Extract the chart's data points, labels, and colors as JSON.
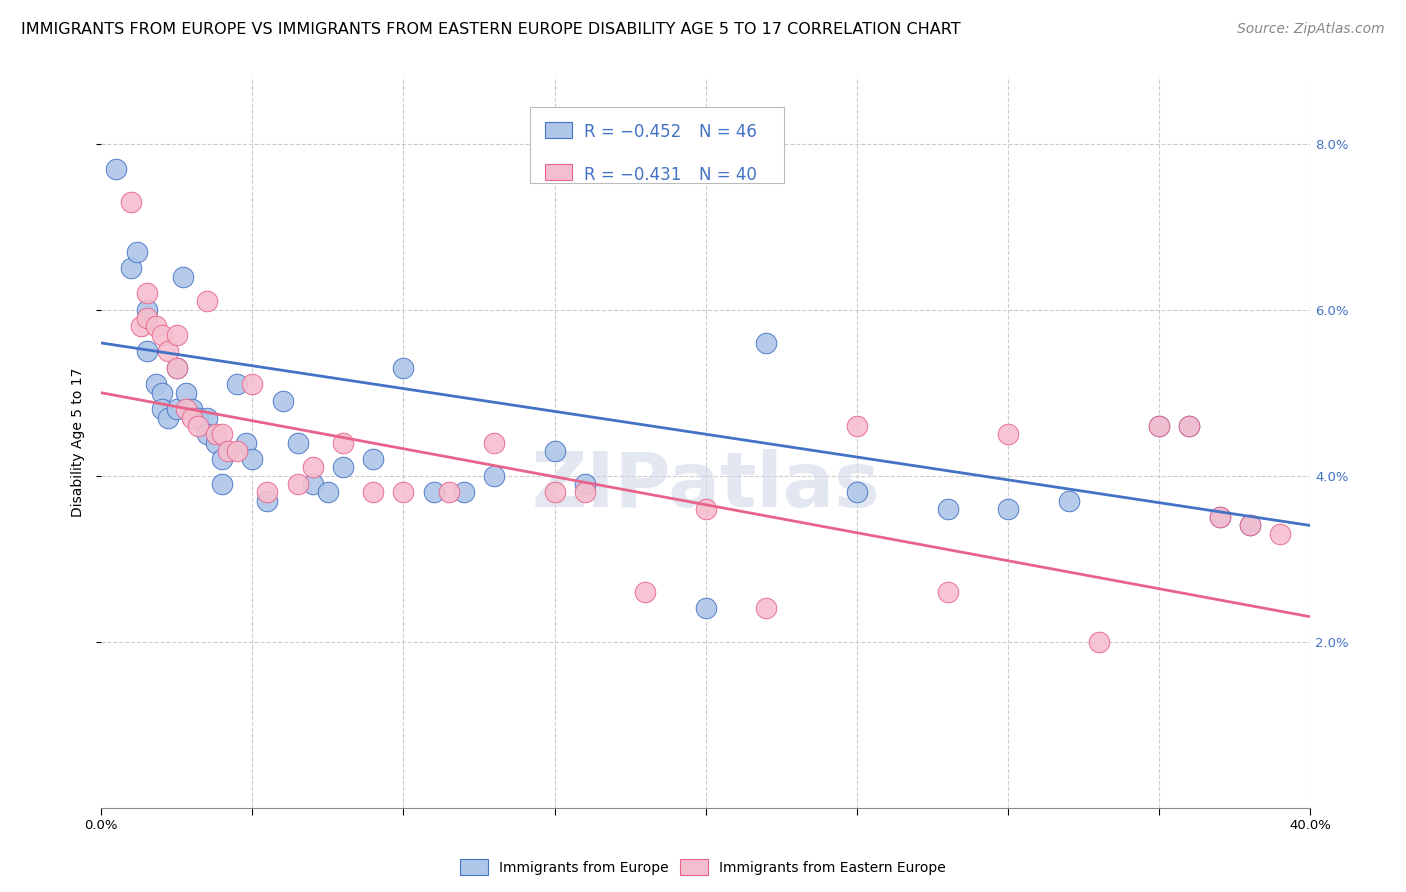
{
  "title": "IMMIGRANTS FROM EUROPE VS IMMIGRANTS FROM EASTERN EUROPE DISABILITY AGE 5 TO 17 CORRELATION CHART",
  "source": "Source: ZipAtlas.com",
  "ylabel": "Disability Age 5 to 17",
  "xlim": [
    0.0,
    0.4
  ],
  "ylim": [
    0.0,
    0.088
  ],
  "yticks": [
    0.02,
    0.04,
    0.06,
    0.08
  ],
  "ytick_labels": [
    "2.0%",
    "4.0%",
    "6.0%",
    "8.0%"
  ],
  "xticks": [
    0.0,
    0.05,
    0.1,
    0.15,
    0.2,
    0.25,
    0.3,
    0.35,
    0.4
  ],
  "legend_r_blue": "-0.452",
  "legend_n_blue": "46",
  "legend_r_pink": "-0.431",
  "legend_n_pink": "40",
  "blue_color": "#aec6e8",
  "pink_color": "#f5bece",
  "blue_line_color": "#4472c4",
  "pink_line_color": "#e8638a",
  "watermark": "ZIPatlas",
  "blue_scatter_x": [
    0.005,
    0.01,
    0.012,
    0.015,
    0.015,
    0.018,
    0.02,
    0.02,
    0.022,
    0.025,
    0.025,
    0.027,
    0.028,
    0.03,
    0.032,
    0.035,
    0.035,
    0.038,
    0.04,
    0.04,
    0.045,
    0.048,
    0.05,
    0.055,
    0.06,
    0.065,
    0.07,
    0.075,
    0.08,
    0.09,
    0.1,
    0.11,
    0.12,
    0.13,
    0.15,
    0.16,
    0.2,
    0.22,
    0.25,
    0.28,
    0.3,
    0.32,
    0.35,
    0.36,
    0.37,
    0.38
  ],
  "blue_scatter_y": [
    0.077,
    0.065,
    0.067,
    0.06,
    0.055,
    0.051,
    0.05,
    0.048,
    0.047,
    0.053,
    0.048,
    0.064,
    0.05,
    0.048,
    0.047,
    0.047,
    0.045,
    0.044,
    0.042,
    0.039,
    0.051,
    0.044,
    0.042,
    0.037,
    0.049,
    0.044,
    0.039,
    0.038,
    0.041,
    0.042,
    0.053,
    0.038,
    0.038,
    0.04,
    0.043,
    0.039,
    0.024,
    0.056,
    0.038,
    0.036,
    0.036,
    0.037,
    0.046,
    0.046,
    0.035,
    0.034
  ],
  "pink_scatter_x": [
    0.01,
    0.013,
    0.015,
    0.015,
    0.018,
    0.02,
    0.022,
    0.025,
    0.025,
    0.028,
    0.03,
    0.032,
    0.035,
    0.038,
    0.04,
    0.042,
    0.045,
    0.05,
    0.055,
    0.065,
    0.07,
    0.08,
    0.09,
    0.1,
    0.115,
    0.13,
    0.15,
    0.16,
    0.18,
    0.2,
    0.22,
    0.25,
    0.28,
    0.3,
    0.33,
    0.35,
    0.36,
    0.37,
    0.38,
    0.39
  ],
  "pink_scatter_y": [
    0.073,
    0.058,
    0.062,
    0.059,
    0.058,
    0.057,
    0.055,
    0.053,
    0.057,
    0.048,
    0.047,
    0.046,
    0.061,
    0.045,
    0.045,
    0.043,
    0.043,
    0.051,
    0.038,
    0.039,
    0.041,
    0.044,
    0.038,
    0.038,
    0.038,
    0.044,
    0.038,
    0.038,
    0.026,
    0.036,
    0.024,
    0.046,
    0.026,
    0.045,
    0.02,
    0.046,
    0.046,
    0.035,
    0.034,
    0.033
  ],
  "blue_line_x": [
    0.0,
    0.4
  ],
  "blue_line_y": [
    0.056,
    0.034
  ],
  "pink_line_x": [
    0.0,
    0.4
  ],
  "pink_line_y": [
    0.05,
    0.023
  ],
  "grid_color": "#cccccc",
  "background_color": "#ffffff",
  "title_fontsize": 11.5,
  "source_fontsize": 10,
  "axis_fontsize": 10,
  "tick_fontsize": 9.5,
  "legend_fontsize": 12
}
